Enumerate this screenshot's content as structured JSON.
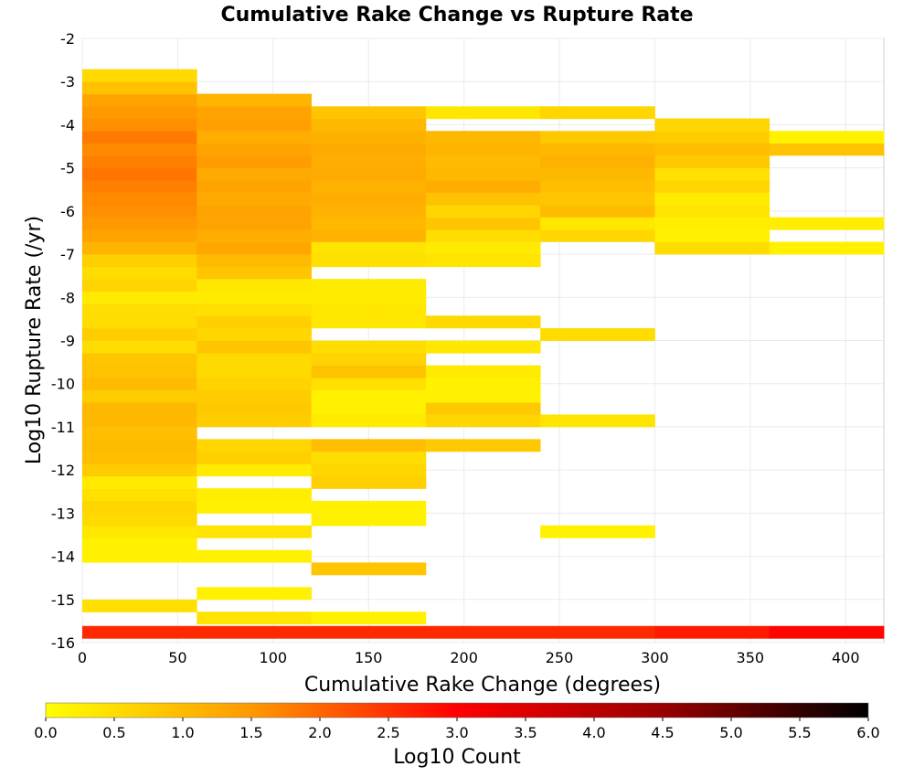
{
  "chart_data": {
    "type": "heatmap",
    "title": "Cumulative Rake Change vs Rupture Rate",
    "xlabel": "Cumulative Rake Change (degrees)",
    "ylabel": "Log10 Rupture Rate (/yr)",
    "xlim": [
      0,
      420
    ],
    "ylim": [
      -16,
      -2
    ],
    "x_ticks": [
      0,
      50,
      100,
      150,
      200,
      250,
      300,
      350,
      400
    ],
    "y_ticks": [
      -2,
      -3,
      -4,
      -5,
      -6,
      -7,
      -8,
      -9,
      -10,
      -11,
      -12,
      -13,
      -14,
      -15,
      -16
    ],
    "grid": true,
    "x_bin_width": 60,
    "y_bin_height": 0.286,
    "colorbar": {
      "label": "Log10 Count",
      "range": [
        0,
        6
      ],
      "ticks": [
        "0.0",
        "0.5",
        "1.0",
        "1.5",
        "2.0",
        "2.5",
        "3.0",
        "3.5",
        "4.0",
        "4.5",
        "5.0",
        "5.5",
        "6.0"
      ],
      "placement": "bottom",
      "colors": [
        "#ffff00",
        "#ff9900",
        "#ff0000",
        "#990000",
        "#000000"
      ]
    },
    "columns": [
      {
        "x0": 0,
        "cells": [
          [
            -15.9,
            2.6
          ],
          [
            -15.29,
            0.45
          ],
          [
            -14.14,
            0.2
          ],
          [
            -13.86,
            0.2
          ],
          [
            -13.57,
            0.35
          ],
          [
            -13.29,
            0.55
          ],
          [
            -13.0,
            0.6
          ],
          [
            -12.71,
            0.45
          ],
          [
            -12.43,
            0.3
          ],
          [
            -12.14,
            0.75
          ],
          [
            -11.86,
            0.95
          ],
          [
            -11.57,
            1.0
          ],
          [
            -11.29,
            0.95
          ],
          [
            -11.0,
            1.05
          ],
          [
            -10.71,
            1.05
          ],
          [
            -10.43,
            0.75
          ],
          [
            -10.14,
            1.0
          ],
          [
            -9.86,
            0.9
          ],
          [
            -9.57,
            0.85
          ],
          [
            -9.29,
            0.5
          ],
          [
            -9.0,
            0.75
          ],
          [
            -8.71,
            0.5
          ],
          [
            -8.43,
            0.5
          ],
          [
            -8.14,
            0.3
          ],
          [
            -7.86,
            0.65
          ],
          [
            -7.57,
            0.5
          ],
          [
            -7.29,
            0.7
          ],
          [
            -7.0,
            1.1
          ],
          [
            -6.71,
            1.35
          ],
          [
            -6.43,
            1.5
          ],
          [
            -6.14,
            1.6
          ],
          [
            -5.86,
            1.65
          ],
          [
            -5.57,
            1.75
          ],
          [
            -5.29,
            1.85
          ],
          [
            -5.0,
            1.75
          ],
          [
            -4.71,
            1.65
          ],
          [
            -4.43,
            1.8
          ],
          [
            -4.14,
            1.6
          ],
          [
            -3.86,
            1.5
          ],
          [
            -3.57,
            1.35
          ],
          [
            -3.29,
            0.9
          ],
          [
            -3.0,
            0.55
          ]
        ]
      },
      {
        "x0": 60,
        "cells": [
          [
            -15.9,
            2.6
          ],
          [
            -15.57,
            0.4
          ],
          [
            -15.0,
            0.2
          ],
          [
            -14.14,
            0.2
          ],
          [
            -13.57,
            0.4
          ],
          [
            -13.0,
            0.2
          ],
          [
            -12.71,
            0.25
          ],
          [
            -12.14,
            0.3
          ],
          [
            -11.86,
            0.7
          ],
          [
            -11.57,
            0.6
          ],
          [
            -11.0,
            0.75
          ],
          [
            -10.71,
            0.8
          ],
          [
            -10.43,
            0.75
          ],
          [
            -10.14,
            0.65
          ],
          [
            -9.86,
            0.55
          ],
          [
            -9.57,
            0.55
          ],
          [
            -9.29,
            0.85
          ],
          [
            -9.0,
            0.6
          ],
          [
            -8.71,
            0.7
          ],
          [
            -8.43,
            0.45
          ],
          [
            -8.14,
            0.3
          ],
          [
            -7.86,
            0.35
          ],
          [
            -7.57,
            0.85
          ],
          [
            -7.29,
            1.0
          ],
          [
            -7.0,
            1.3
          ],
          [
            -6.71,
            1.2
          ],
          [
            -6.43,
            1.35
          ],
          [
            -6.14,
            1.35
          ],
          [
            -5.86,
            1.25
          ],
          [
            -5.57,
            1.35
          ],
          [
            -5.29,
            1.25
          ],
          [
            -5.0,
            1.45
          ],
          [
            -4.71,
            1.35
          ],
          [
            -4.43,
            1.2
          ],
          [
            -4.14,
            1.4
          ],
          [
            -3.86,
            1.35
          ],
          [
            -3.57,
            1.1
          ]
        ]
      },
      {
        "x0": 120,
        "cells": [
          [
            -15.9,
            2.6
          ],
          [
            -15.57,
            0.2
          ],
          [
            -14.43,
            0.85
          ],
          [
            -13.29,
            0.2
          ],
          [
            -13.0,
            0.2
          ],
          [
            -12.43,
            0.7
          ],
          [
            -12.14,
            0.6
          ],
          [
            -11.86,
            0.5
          ],
          [
            -11.57,
            0.95
          ],
          [
            -11.0,
            0.3
          ],
          [
            -10.71,
            0.2
          ],
          [
            -10.43,
            0.2
          ],
          [
            -10.14,
            0.45
          ],
          [
            -9.86,
            0.9
          ],
          [
            -9.57,
            0.65
          ],
          [
            -9.29,
            0.5
          ],
          [
            -8.71,
            0.35
          ],
          [
            -8.43,
            0.35
          ],
          [
            -8.14,
            0.3
          ],
          [
            -7.86,
            0.3
          ],
          [
            -7.29,
            0.45
          ],
          [
            -7.0,
            0.4
          ],
          [
            -6.71,
            1.15
          ],
          [
            -6.43,
            1.05
          ],
          [
            -6.14,
            1.15
          ],
          [
            -5.86,
            1.2
          ],
          [
            -5.57,
            1.15
          ],
          [
            -5.29,
            1.25
          ],
          [
            -5.0,
            1.2
          ],
          [
            -4.71,
            1.25
          ],
          [
            -4.43,
            1.15
          ],
          [
            -4.14,
            1.05
          ],
          [
            -3.86,
            0.85
          ]
        ]
      },
      {
        "x0": 180,
        "cells": [
          [
            -15.9,
            2.6
          ],
          [
            -11.57,
            0.8
          ],
          [
            -11.0,
            0.6
          ],
          [
            -10.71,
            0.8
          ],
          [
            -10.43,
            0.2
          ],
          [
            -10.14,
            0.2
          ],
          [
            -9.86,
            0.3
          ],
          [
            -9.29,
            0.35
          ],
          [
            -8.71,
            0.55
          ],
          [
            -7.29,
            0.4
          ],
          [
            -7.0,
            0.3
          ],
          [
            -6.71,
            0.5
          ],
          [
            -6.43,
            0.85
          ],
          [
            -6.14,
            0.6
          ],
          [
            -5.86,
            0.9
          ],
          [
            -5.57,
            1.2
          ],
          [
            -5.29,
            1.05
          ],
          [
            -5.0,
            1.0
          ],
          [
            -4.71,
            1.1
          ],
          [
            -4.43,
            1.05
          ],
          [
            -3.86,
            0.35
          ]
        ]
      },
      {
        "x0": 240,
        "cells": [
          [
            -15.9,
            2.6
          ],
          [
            -13.57,
            0.2
          ],
          [
            -11.0,
            0.4
          ],
          [
            -9.0,
            0.5
          ],
          [
            -6.71,
            0.6
          ],
          [
            -6.43,
            0.35
          ],
          [
            -6.14,
            1.0
          ],
          [
            -5.86,
            0.85
          ],
          [
            -5.57,
            0.95
          ],
          [
            -5.29,
            1.05
          ],
          [
            -5.0,
            1.15
          ],
          [
            -4.71,
            1.05
          ],
          [
            -4.43,
            0.8
          ],
          [
            -3.86,
            0.6
          ]
        ]
      },
      {
        "x0": 300,
        "cells": [
          [
            -15.9,
            2.75
          ],
          [
            -7.0,
            0.5
          ],
          [
            -6.71,
            0.2
          ],
          [
            -6.43,
            0.25
          ],
          [
            -6.14,
            0.4
          ],
          [
            -5.86,
            0.3
          ],
          [
            -5.57,
            0.6
          ],
          [
            -5.29,
            0.45
          ],
          [
            -5.0,
            0.8
          ],
          [
            -4.71,
            0.95
          ],
          [
            -4.43,
            0.75
          ],
          [
            -4.14,
            0.6
          ]
        ]
      },
      {
        "x0": 360,
        "cells": [
          [
            -15.9,
            2.95
          ],
          [
            -7.0,
            0.2
          ],
          [
            -6.43,
            0.25
          ],
          [
            -4.71,
            0.9
          ],
          [
            -4.43,
            0.2
          ]
        ]
      }
    ]
  }
}
